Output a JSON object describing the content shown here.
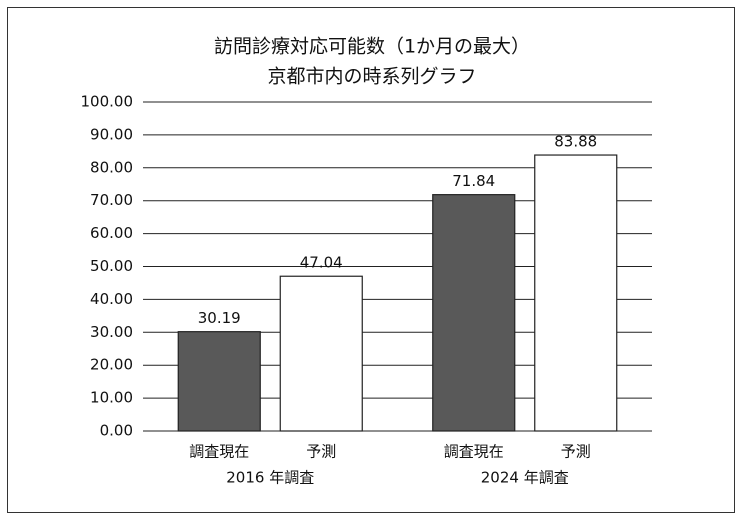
{
  "chart_data": {
    "type": "bar",
    "title": "訪問診療対応可能数（1か月の最大）",
    "subtitle": "京都市内の時系列グラフ",
    "categories": [
      "2016 年調査",
      "2024 年調査"
    ],
    "series": [
      {
        "name": "調査現在",
        "color": "#595959",
        "values": [
          30.19,
          71.84
        ]
      },
      {
        "name": "予測",
        "color": "#ffffff",
        "values": [
          47.04,
          83.88
        ]
      }
    ],
    "ylim": [
      0,
      100
    ],
    "yticks": [
      {
        "value": 0,
        "label": "0.00"
      },
      {
        "value": 10,
        "label": "10.00"
      },
      {
        "value": 20,
        "label": "20.00"
      },
      {
        "value": 30,
        "label": "30.00"
      },
      {
        "value": 40,
        "label": "40.00"
      },
      {
        "value": 50,
        "label": "50.00"
      },
      {
        "value": 60,
        "label": "60.00"
      },
      {
        "value": 70,
        "label": "70.00"
      },
      {
        "value": 80,
        "label": "80.00"
      },
      {
        "value": 90,
        "label": "90.00"
      },
      {
        "value": 100,
        "label": "100.00"
      }
    ],
    "grid": true
  }
}
